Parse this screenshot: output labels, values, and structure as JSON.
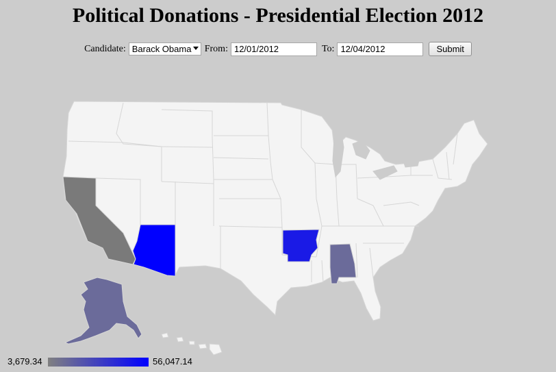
{
  "page": {
    "title": "Political Donations - Presidential Election 2012"
  },
  "form": {
    "candidate_label": "Candidate:",
    "candidate_value": "Barack Obama",
    "from_label": "From:",
    "from_value": "12/01/2012",
    "to_label": "To:",
    "to_value": "12/04/2012",
    "submit_label": "Submit"
  },
  "map": {
    "base_color": "#f4f4f4",
    "border_color": "#d6d6d6",
    "highlighted_states": [
      {
        "state": "California",
        "color": "#7a7a7a"
      },
      {
        "state": "Arizona",
        "color": "#0000ff"
      },
      {
        "state": "Arkansas",
        "color": "#1a1ae6"
      },
      {
        "state": "Alabama",
        "color": "#6b6b9a"
      },
      {
        "state": "Alaska",
        "color": "#6b6b9a"
      }
    ]
  },
  "legend": {
    "min_label": "3,679.34",
    "max_label": "56,047.14",
    "min_color": "#808080",
    "max_color": "#0000ff"
  }
}
